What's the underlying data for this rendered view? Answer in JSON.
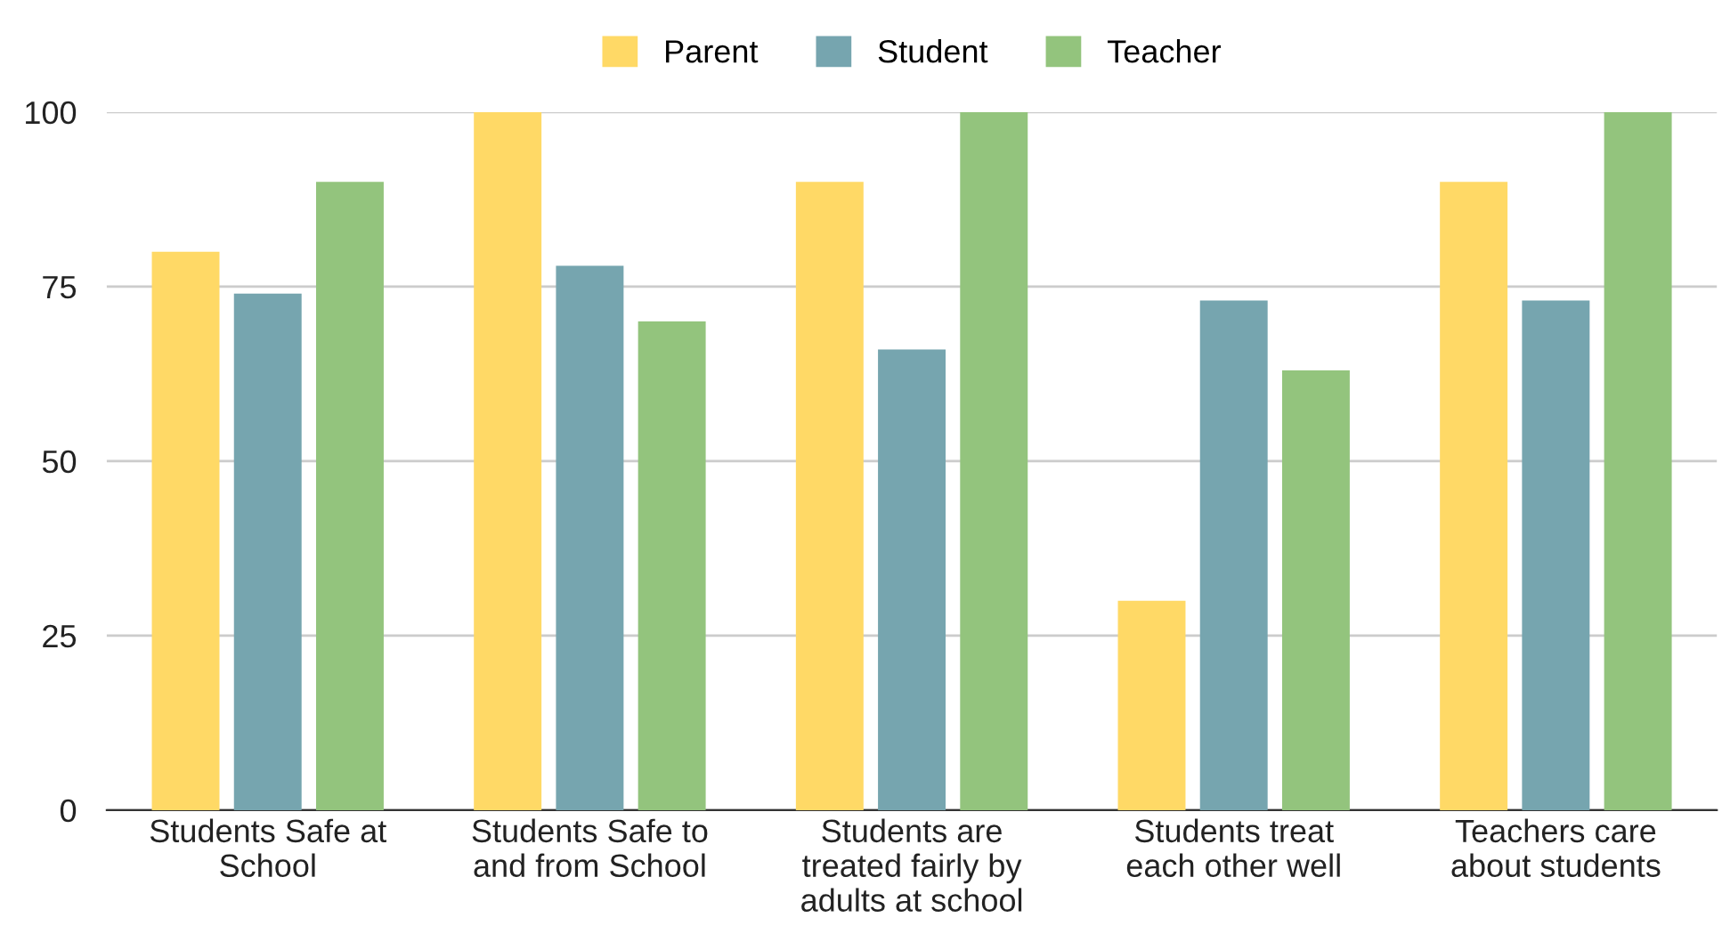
{
  "chart_data": {
    "type": "bar",
    "categories": [
      "Students Safe at\nSchool",
      "Students Safe to\nand from School",
      "Students are\ntreated fairly by\nadults at school",
      "Students treat\neach other well",
      "Teachers care\nabout students"
    ],
    "series": [
      {
        "name": "Parent",
        "color": "#ffd966",
        "values": [
          80,
          100,
          90,
          30,
          90
        ]
      },
      {
        "name": "Student",
        "color": "#76a5af",
        "values": [
          74,
          78,
          66,
          73,
          73
        ]
      },
      {
        "name": "Teacher",
        "color": "#93c47d",
        "values": [
          90,
          70,
          100,
          63,
          100
        ]
      }
    ],
    "ylim": [
      0,
      100
    ],
    "yticks": [
      0,
      25,
      50,
      75,
      100
    ],
    "grid": "y",
    "legend": "top"
  }
}
